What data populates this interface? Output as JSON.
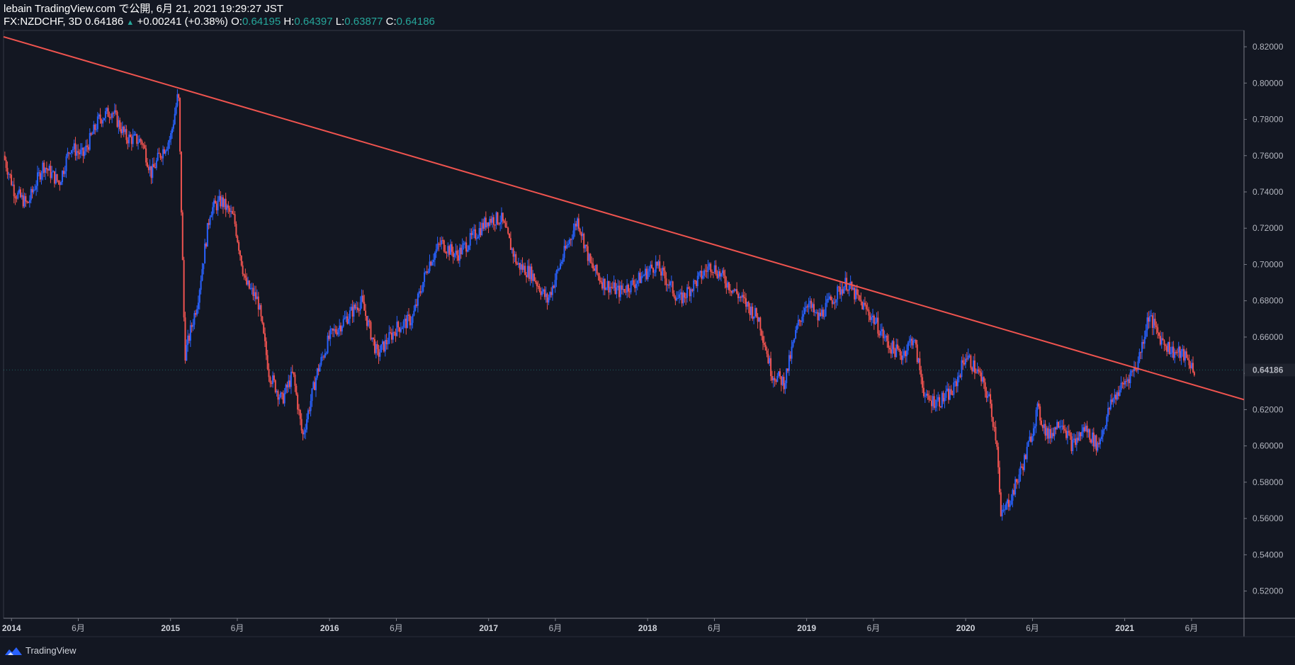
{
  "header": {
    "line1": "lebain TradingView.com で公開, 6月 21, 2021 19:29:27 JST",
    "symbol": "FX:NZDCHF, 3D",
    "last": "0.64186",
    "change": "+0.00241 (+0.38%)",
    "o_label": "O:",
    "o_value": "0.64195",
    "h_label": "H:",
    "h_value": "0.64397",
    "l_label": "L:",
    "l_value": "0.63877",
    "c_label": "C:",
    "c_value": "0.64186"
  },
  "footer": {
    "brand": "TradingView"
  },
  "colors": {
    "background": "#131722",
    "up": "#2962ff",
    "down": "#ef5350",
    "trendline": "#f0544f",
    "text": "#d1d4dc"
  },
  "chart_data": {
    "type": "candlestick",
    "symbol": "FX:NZDCHF",
    "interval": "3D",
    "ylim": [
      0.505,
      0.829
    ],
    "x_range": [
      2013.95,
      2021.75
    ],
    "y_ticks": [
      "0.82000",
      "0.80000",
      "0.78000",
      "0.76000",
      "0.74000",
      "0.72000",
      "0.70000",
      "0.68000",
      "0.66000",
      "0.64000",
      "0.62000",
      "0.60000",
      "0.58000",
      "0.56000",
      "0.54000",
      "0.52000"
    ],
    "last_price_label": "0.64186",
    "x_ticks": [
      {
        "label": "2014",
        "t": 2014.0,
        "bold": true
      },
      {
        "label": "6月",
        "t": 2014.42,
        "bold": false
      },
      {
        "label": "2015",
        "t": 2015.0,
        "bold": true
      },
      {
        "label": "6月",
        "t": 2015.42,
        "bold": false
      },
      {
        "label": "2016",
        "t": 2016.0,
        "bold": true
      },
      {
        "label": "6月",
        "t": 2016.42,
        "bold": false
      },
      {
        "label": "2017",
        "t": 2017.0,
        "bold": true
      },
      {
        "label": "6月",
        "t": 2017.42,
        "bold": false
      },
      {
        "label": "2018",
        "t": 2018.0,
        "bold": true
      },
      {
        "label": "6月",
        "t": 2018.42,
        "bold": false
      },
      {
        "label": "2019",
        "t": 2019.0,
        "bold": true
      },
      {
        "label": "6月",
        "t": 2019.42,
        "bold": false
      },
      {
        "label": "2020",
        "t": 2020.0,
        "bold": true
      },
      {
        "label": "6月",
        "t": 2020.42,
        "bold": false
      },
      {
        "label": "2021",
        "t": 2021.0,
        "bold": true
      },
      {
        "label": "6月",
        "t": 2021.42,
        "bold": false
      }
    ],
    "trendline": {
      "t1": 2013.95,
      "y1": 0.8255,
      "t2": 2021.75,
      "y2": 0.6255
    },
    "price_path": [
      [
        2013.95,
        0.76
      ],
      [
        2014.02,
        0.74
      ],
      [
        2014.1,
        0.733
      ],
      [
        2014.2,
        0.755
      ],
      [
        2014.3,
        0.745
      ],
      [
        2014.37,
        0.765
      ],
      [
        2014.45,
        0.76
      ],
      [
        2014.55,
        0.78
      ],
      [
        2014.63,
        0.785
      ],
      [
        2014.72,
        0.77
      ],
      [
        2014.82,
        0.768
      ],
      [
        2014.88,
        0.75
      ],
      [
        2014.93,
        0.76
      ],
      [
        2015.0,
        0.77
      ],
      [
        2015.05,
        0.795
      ],
      [
        2015.09,
        0.65
      ],
      [
        2015.17,
        0.68
      ],
      [
        2015.25,
        0.73
      ],
      [
        2015.32,
        0.735
      ],
      [
        2015.4,
        0.725
      ],
      [
        2015.47,
        0.69
      ],
      [
        2015.55,
        0.68
      ],
      [
        2015.62,
        0.64
      ],
      [
        2015.7,
        0.625
      ],
      [
        2015.77,
        0.64
      ],
      [
        2015.83,
        0.605
      ],
      [
        2015.92,
        0.64
      ],
      [
        2016.0,
        0.66
      ],
      [
        2016.1,
        0.67
      ],
      [
        2016.2,
        0.68
      ],
      [
        2016.3,
        0.65
      ],
      [
        2016.42,
        0.665
      ],
      [
        2016.52,
        0.67
      ],
      [
        2016.62,
        0.7
      ],
      [
        2016.7,
        0.712
      ],
      [
        2016.8,
        0.705
      ],
      [
        2016.9,
        0.715
      ],
      [
        2017.0,
        0.725
      ],
      [
        2017.08,
        0.725
      ],
      [
        2017.18,
        0.7
      ],
      [
        2017.27,
        0.695
      ],
      [
        2017.37,
        0.68
      ],
      [
        2017.47,
        0.705
      ],
      [
        2017.56,
        0.725
      ],
      [
        2017.64,
        0.7
      ],
      [
        2017.72,
        0.69
      ],
      [
        2017.82,
        0.685
      ],
      [
        2017.92,
        0.69
      ],
      [
        2018.05,
        0.7
      ],
      [
        2018.13,
        0.69
      ],
      [
        2018.2,
        0.68
      ],
      [
        2018.3,
        0.69
      ],
      [
        2018.4,
        0.7
      ],
      [
        2018.5,
        0.69
      ],
      [
        2018.6,
        0.68
      ],
      [
        2018.7,
        0.67
      ],
      [
        2018.78,
        0.64
      ],
      [
        2018.86,
        0.635
      ],
      [
        2018.94,
        0.665
      ],
      [
        2019.0,
        0.68
      ],
      [
        2019.07,
        0.67
      ],
      [
        2019.15,
        0.68
      ],
      [
        2019.25,
        0.69
      ],
      [
        2019.33,
        0.68
      ],
      [
        2019.42,
        0.67
      ],
      [
        2019.52,
        0.655
      ],
      [
        2019.6,
        0.65
      ],
      [
        2019.67,
        0.66
      ],
      [
        2019.75,
        0.625
      ],
      [
        2019.84,
        0.625
      ],
      [
        2019.92,
        0.63
      ],
      [
        2020.0,
        0.65
      ],
      [
        2020.08,
        0.64
      ],
      [
        2020.15,
        0.625
      ],
      [
        2020.2,
        0.6
      ],
      [
        2020.22,
        0.56
      ],
      [
        2020.3,
        0.575
      ],
      [
        2020.38,
        0.595
      ],
      [
        2020.45,
        0.62
      ],
      [
        2020.52,
        0.605
      ],
      [
        2020.6,
        0.615
      ],
      [
        2020.67,
        0.6
      ],
      [
        2020.75,
        0.61
      ],
      [
        2020.83,
        0.6
      ],
      [
        2020.92,
        0.625
      ],
      [
        2021.0,
        0.635
      ],
      [
        2021.08,
        0.645
      ],
      [
        2021.15,
        0.672
      ],
      [
        2021.22,
        0.66
      ],
      [
        2021.3,
        0.652
      ],
      [
        2021.37,
        0.65
      ],
      [
        2021.44,
        0.642
      ]
    ]
  }
}
